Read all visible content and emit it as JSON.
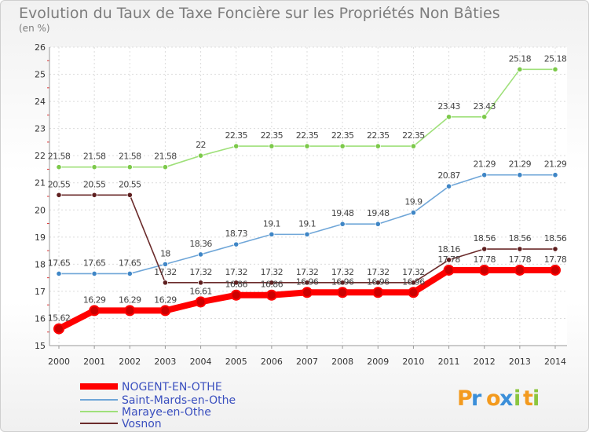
{
  "chart_data": {
    "type": "line",
    "title": "Evolution du Taux de Taxe Foncière sur les Propriétés Non Bâties",
    "subtitle": "(en %)",
    "ylim": [
      15,
      26
    ],
    "yticks": [
      15,
      16,
      17,
      18,
      19,
      20,
      21,
      22,
      23,
      24,
      25,
      26
    ],
    "categories": [
      "2000",
      "2001",
      "2002",
      "2003",
      "2004",
      "2005",
      "2006",
      "2007",
      "2008",
      "2009",
      "2010",
      "2011",
      "2012",
      "2013",
      "2014"
    ],
    "grid": true,
    "legend_position": "bottom-left",
    "series": [
      {
        "name": "NOGENT-EN-OTHE",
        "color": "#ff0000",
        "marker": "#cc0000",
        "values": [
          15.62,
          16.29,
          16.29,
          16.29,
          16.61,
          16.86,
          16.86,
          16.96,
          16.96,
          16.96,
          16.96,
          17.78,
          17.78,
          17.78,
          17.78
        ],
        "labels": [
          "15.62",
          "16.29",
          "16.29",
          "16.29",
          "16.61",
          "16.86",
          "16.86",
          "16.96",
          "16.96",
          "16.96",
          "16.96",
          "17.78",
          "17.78",
          "17.78",
          "17.78"
        ]
      },
      {
        "name": "Saint-Mards-en-Othe",
        "color": "#6fa6d8",
        "marker": "#3f86c6",
        "values": [
          17.65,
          17.65,
          17.65,
          18,
          18.36,
          18.73,
          19.1,
          19.1,
          19.48,
          19.48,
          19.9,
          20.87,
          21.29,
          21.29,
          21.29
        ],
        "labels": [
          "17.65",
          "17.65",
          "17.65",
          "18",
          "18.36",
          "18.73",
          "19.1",
          "19.1",
          "19.48",
          "19.48",
          "19.9",
          "20.87",
          "21.29",
          "21.29",
          "21.29"
        ]
      },
      {
        "name": "Maraye-en-Othe",
        "color": "#9fe07a",
        "marker": "#7cc94a",
        "values": [
          21.58,
          21.58,
          21.58,
          21.58,
          22,
          22.35,
          22.35,
          22.35,
          22.35,
          22.35,
          22.35,
          23.43,
          23.43,
          25.18,
          25.18
        ],
        "labels": [
          "21.58",
          "21.58",
          "21.58",
          "21.58",
          "22",
          "22.35",
          "22.35",
          "22.35",
          "22.35",
          "22.35",
          "22.35",
          "23.43",
          "23.43",
          "25.18",
          "25.18"
        ]
      },
      {
        "name": "Vosnon",
        "color": "#6b2b2b",
        "marker": "#5e1f1f",
        "values": [
          20.55,
          20.55,
          20.55,
          17.32,
          17.32,
          17.32,
          17.32,
          17.32,
          17.32,
          17.32,
          17.32,
          18.16,
          18.56,
          18.56,
          18.56
        ],
        "labels": [
          "20.55",
          "20.55",
          "20.55",
          "17.32",
          "17.32",
          "17.32",
          "17.32",
          "17.32",
          "17.32",
          "17.32",
          "17.32",
          "18.16",
          "18.56",
          "18.56",
          "18.56"
        ]
      }
    ]
  },
  "logo": {
    "letters": [
      "P",
      "r",
      "o",
      "x",
      "i",
      "t",
      "i"
    ],
    "colors": [
      "#f39a1e",
      "#3b8fd9",
      "#f39a1e",
      "#3b8fd9",
      "#8cc63e",
      "#f39a1e",
      "#8cc63e"
    ]
  }
}
